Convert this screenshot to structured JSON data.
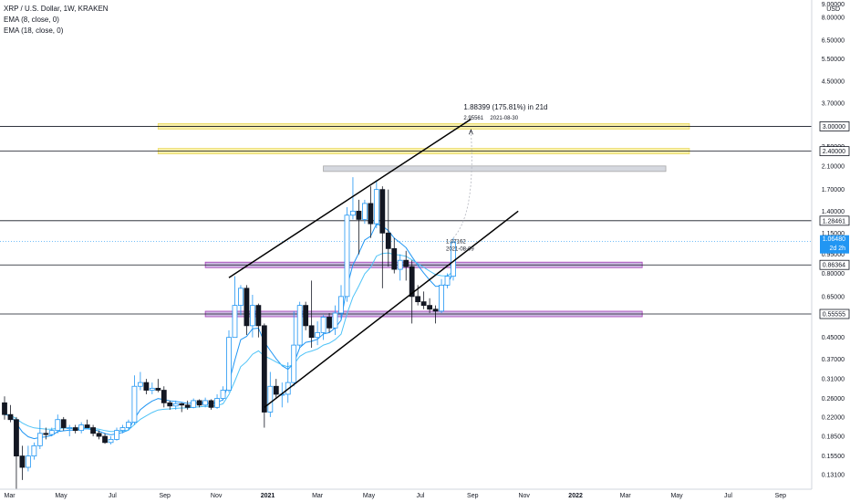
{
  "header": {
    "symbol_line": "XRP / U.S. Dollar, 1W, KRAKEN",
    "ema1": "EMA (8, close, 0)",
    "ema2": "EMA (18, close, 0)"
  },
  "chart_data": {
    "type": "candlestick",
    "scale": "log",
    "currency": "USD",
    "price_ticks": [
      "9.00000",
      "8.00000",
      "6.50000",
      "5.50000",
      "4.50000",
      "3.70000",
      "3.00000",
      "2.50000",
      "2.10000",
      "1.70000",
      "1.40000",
      "1.15000",
      "0.95000",
      "0.80000",
      "0.65000",
      "0.55000",
      "0.45000",
      "0.37000",
      "0.31000",
      "0.26000",
      "0.22000",
      "0.18500",
      "0.15500",
      "0.13100"
    ],
    "time_ticks": [
      "Mar",
      "May",
      "Jul",
      "Sep",
      "Nov",
      "2021",
      "Mar",
      "May",
      "Jul",
      "Sep",
      "Nov",
      "2022",
      "Mar",
      "May",
      "Jul",
      "Sep"
    ],
    "current_price": {
      "label": "1.06480",
      "countdown": "2d 2h",
      "value": 1.0648
    },
    "horizontal_levels": [
      {
        "label": "3.00000",
        "value": 3.0
      },
      {
        "label": "2.40000",
        "value": 2.4
      },
      {
        "label": "1.28461",
        "value": 1.28461
      },
      {
        "label": "0.86364",
        "value": 0.86364
      },
      {
        "label": "0.55555",
        "value": 0.55555
      }
    ],
    "zones": [
      {
        "color": "#e8d44d",
        "fill": "#f7eea0",
        "value": 3.0,
        "from": "2020-08-24",
        "to": "2022-05-16"
      },
      {
        "color": "#e8d44d",
        "fill": "#f7eea0",
        "value": 2.4,
        "from": "2020-08-24",
        "to": "2022-05-16"
      },
      {
        "color": "#9e9e9e",
        "fill": "#d1d4dc",
        "value": 2.05,
        "from": "2021-03-08",
        "to": "2022-04-18"
      },
      {
        "color": "#9c27b0",
        "fill": "#c9b3e0",
        "value": 0.86364,
        "from": "2020-10-19",
        "to": "2022-03-21"
      },
      {
        "color": "#9c27b0",
        "fill": "#c9b3e0",
        "value": 0.55555,
        "from": "2020-10-19",
        "to": "2022-03-21"
      }
    ],
    "projection": {
      "label": "1.88399 (175.81%) in 21d",
      "sub_label_price": "2.95561",
      "sub_label_date": "2021-08-30",
      "origin_label_price": "1.07162",
      "origin_label_date": "2021-08-09"
    },
    "channel": {
      "upper": [
        {
          "date": "2020-11-16",
          "price": 0.77
        },
        {
          "date": "2021-08-30",
          "price": 3.2
        }
      ],
      "lower": [
        {
          "date": "2020-12-28",
          "price": 0.24
        },
        {
          "date": "2021-10-25",
          "price": 1.4
        }
      ]
    },
    "candles": [
      {
        "d": "2020-02-24",
        "o": 0.25,
        "h": 0.265,
        "l": 0.215,
        "c": 0.225
      },
      {
        "d": "2020-03-02",
        "o": 0.225,
        "h": 0.245,
        "l": 0.21,
        "c": 0.215
      },
      {
        "d": "2020-03-09",
        "o": 0.215,
        "h": 0.22,
        "l": 0.115,
        "c": 0.155
      },
      {
        "d": "2020-03-16",
        "o": 0.155,
        "h": 0.17,
        "l": 0.125,
        "c": 0.14
      },
      {
        "d": "2020-03-23",
        "o": 0.14,
        "h": 0.17,
        "l": 0.135,
        "c": 0.155
      },
      {
        "d": "2020-03-30",
        "o": 0.155,
        "h": 0.175,
        "l": 0.15,
        "c": 0.17
      },
      {
        "d": "2020-04-06",
        "o": 0.17,
        "h": 0.215,
        "l": 0.165,
        "c": 0.19
      },
      {
        "d": "2020-04-13",
        "o": 0.19,
        "h": 0.2,
        "l": 0.18,
        "c": 0.188
      },
      {
        "d": "2020-04-20",
        "o": 0.188,
        "h": 0.2,
        "l": 0.185,
        "c": 0.195
      },
      {
        "d": "2020-04-27",
        "o": 0.195,
        "h": 0.225,
        "l": 0.19,
        "c": 0.215
      },
      {
        "d": "2020-05-04",
        "o": 0.215,
        "h": 0.22,
        "l": 0.195,
        "c": 0.2
      },
      {
        "d": "2020-05-11",
        "o": 0.2,
        "h": 0.205,
        "l": 0.185,
        "c": 0.2
      },
      {
        "d": "2020-05-18",
        "o": 0.2,
        "h": 0.205,
        "l": 0.19,
        "c": 0.195
      },
      {
        "d": "2020-05-25",
        "o": 0.195,
        "h": 0.21,
        "l": 0.19,
        "c": 0.205
      },
      {
        "d": "2020-06-01",
        "o": 0.205,
        "h": 0.215,
        "l": 0.2,
        "c": 0.2
      },
      {
        "d": "2020-06-08",
        "o": 0.2,
        "h": 0.205,
        "l": 0.185,
        "c": 0.19
      },
      {
        "d": "2020-06-15",
        "o": 0.19,
        "h": 0.195,
        "l": 0.18,
        "c": 0.185
      },
      {
        "d": "2020-06-22",
        "o": 0.185,
        "h": 0.19,
        "l": 0.173,
        "c": 0.175
      },
      {
        "d": "2020-06-29",
        "o": 0.175,
        "h": 0.185,
        "l": 0.172,
        "c": 0.18
      },
      {
        "d": "2020-07-06",
        "o": 0.18,
        "h": 0.2,
        "l": 0.178,
        "c": 0.195
      },
      {
        "d": "2020-07-13",
        "o": 0.195,
        "h": 0.205,
        "l": 0.19,
        "c": 0.2
      },
      {
        "d": "2020-07-20",
        "o": 0.2,
        "h": 0.215,
        "l": 0.195,
        "c": 0.21
      },
      {
        "d": "2020-07-27",
        "o": 0.21,
        "h": 0.32,
        "l": 0.205,
        "c": 0.29
      },
      {
        "d": "2020-08-03",
        "o": 0.29,
        "h": 0.33,
        "l": 0.28,
        "c": 0.3
      },
      {
        "d": "2020-08-10",
        "o": 0.3,
        "h": 0.31,
        "l": 0.27,
        "c": 0.28
      },
      {
        "d": "2020-08-17",
        "o": 0.28,
        "h": 0.3,
        "l": 0.27,
        "c": 0.285
      },
      {
        "d": "2020-08-24",
        "o": 0.285,
        "h": 0.31,
        "l": 0.275,
        "c": 0.28
      },
      {
        "d": "2020-08-31",
        "o": 0.28,
        "h": 0.29,
        "l": 0.24,
        "c": 0.25
      },
      {
        "d": "2020-09-07",
        "o": 0.25,
        "h": 0.255,
        "l": 0.235,
        "c": 0.243
      },
      {
        "d": "2020-09-14",
        "o": 0.243,
        "h": 0.255,
        "l": 0.235,
        "c": 0.248
      },
      {
        "d": "2020-09-21",
        "o": 0.248,
        "h": 0.25,
        "l": 0.23,
        "c": 0.245
      },
      {
        "d": "2020-09-28",
        "o": 0.245,
        "h": 0.255,
        "l": 0.235,
        "c": 0.24
      },
      {
        "d": "2020-10-05",
        "o": 0.24,
        "h": 0.26,
        "l": 0.238,
        "c": 0.255
      },
      {
        "d": "2020-10-12",
        "o": 0.255,
        "h": 0.258,
        "l": 0.24,
        "c": 0.245
      },
      {
        "d": "2020-10-19",
        "o": 0.245,
        "h": 0.262,
        "l": 0.24,
        "c": 0.255
      },
      {
        "d": "2020-10-26",
        "o": 0.255,
        "h": 0.258,
        "l": 0.235,
        "c": 0.24
      },
      {
        "d": "2020-11-02",
        "o": 0.24,
        "h": 0.27,
        "l": 0.237,
        "c": 0.26
      },
      {
        "d": "2020-11-09",
        "o": 0.26,
        "h": 0.29,
        "l": 0.255,
        "c": 0.28
      },
      {
        "d": "2020-11-16",
        "o": 0.28,
        "h": 0.48,
        "l": 0.275,
        "c": 0.45
      },
      {
        "d": "2020-11-23",
        "o": 0.45,
        "h": 0.78,
        "l": 0.45,
        "c": 0.6
      },
      {
        "d": "2020-11-30",
        "o": 0.6,
        "h": 0.72,
        "l": 0.55,
        "c": 0.7
      },
      {
        "d": "2020-12-07",
        "o": 0.7,
        "h": 0.72,
        "l": 0.46,
        "c": 0.5
      },
      {
        "d": "2020-12-14",
        "o": 0.5,
        "h": 0.66,
        "l": 0.45,
        "c": 0.6
      },
      {
        "d": "2020-12-21",
        "o": 0.6,
        "h": 0.61,
        "l": 0.45,
        "c": 0.5
      },
      {
        "d": "2020-12-28",
        "o": 0.5,
        "h": 0.51,
        "l": 0.2,
        "c": 0.23
      },
      {
        "d": "2021-01-04",
        "o": 0.23,
        "h": 0.33,
        "l": 0.22,
        "c": 0.29
      },
      {
        "d": "2021-01-11",
        "o": 0.29,
        "h": 0.31,
        "l": 0.26,
        "c": 0.27
      },
      {
        "d": "2021-01-18",
        "o": 0.27,
        "h": 0.3,
        "l": 0.24,
        "c": 0.27
      },
      {
        "d": "2021-01-25",
        "o": 0.27,
        "h": 0.36,
        "l": 0.25,
        "c": 0.3
      },
      {
        "d": "2021-02-01",
        "o": 0.3,
        "h": 0.57,
        "l": 0.29,
        "c": 0.42
      },
      {
        "d": "2021-02-08",
        "o": 0.42,
        "h": 0.62,
        "l": 0.41,
        "c": 0.6
      },
      {
        "d": "2021-02-15",
        "o": 0.6,
        "h": 0.62,
        "l": 0.48,
        "c": 0.5
      },
      {
        "d": "2021-02-22",
        "o": 0.5,
        "h": 0.75,
        "l": 0.41,
        "c": 0.45
      },
      {
        "d": "2021-03-01",
        "o": 0.45,
        "h": 0.52,
        "l": 0.42,
        "c": 0.47
      },
      {
        "d": "2021-03-08",
        "o": 0.47,
        "h": 0.55,
        "l": 0.44,
        "c": 0.54
      },
      {
        "d": "2021-03-15",
        "o": 0.54,
        "h": 0.56,
        "l": 0.47,
        "c": 0.49
      },
      {
        "d": "2021-03-22",
        "o": 0.49,
        "h": 0.6,
        "l": 0.46,
        "c": 0.56
      },
      {
        "d": "2021-03-29",
        "o": 0.56,
        "h": 0.72,
        "l": 0.53,
        "c": 0.65
      },
      {
        "d": "2021-04-05",
        "o": 0.65,
        "h": 1.45,
        "l": 0.62,
        "c": 1.35
      },
      {
        "d": "2021-04-12",
        "o": 1.35,
        "h": 1.9,
        "l": 1.3,
        "c": 1.4
      },
      {
        "d": "2021-04-19",
        "o": 1.4,
        "h": 1.55,
        "l": 0.95,
        "c": 1.3
      },
      {
        "d": "2021-04-26",
        "o": 1.3,
        "h": 1.55,
        "l": 1.25,
        "c": 1.5
      },
      {
        "d": "2021-05-03",
        "o": 1.5,
        "h": 1.75,
        "l": 1.1,
        "c": 1.25
      },
      {
        "d": "2021-05-10",
        "o": 1.25,
        "h": 1.85,
        "l": 1.2,
        "c": 1.7
      },
      {
        "d": "2021-05-17",
        "o": 1.7,
        "h": 1.75,
        "l": 0.7,
        "c": 1.15
      },
      {
        "d": "2021-05-24",
        "o": 1.15,
        "h": 1.7,
        "l": 0.85,
        "c": 1.0
      },
      {
        "d": "2021-05-31",
        "o": 1.0,
        "h": 1.1,
        "l": 0.8,
        "c": 0.83
      },
      {
        "d": "2021-06-07",
        "o": 0.83,
        "h": 0.95,
        "l": 0.75,
        "c": 0.9
      },
      {
        "d": "2021-06-14",
        "o": 0.9,
        "h": 0.98,
        "l": 0.75,
        "c": 0.85
      },
      {
        "d": "2021-06-21",
        "o": 0.85,
        "h": 0.9,
        "l": 0.51,
        "c": 0.65
      },
      {
        "d": "2021-06-28",
        "o": 0.65,
        "h": 0.72,
        "l": 0.6,
        "c": 0.62
      },
      {
        "d": "2021-07-05",
        "o": 0.62,
        "h": 0.68,
        "l": 0.58,
        "c": 0.6
      },
      {
        "d": "2021-07-12",
        "o": 0.6,
        "h": 0.64,
        "l": 0.56,
        "c": 0.58
      },
      {
        "d": "2021-07-19",
        "o": 0.58,
        "h": 0.6,
        "l": 0.51,
        "c": 0.57
      },
      {
        "d": "2021-07-26",
        "o": 0.57,
        "h": 0.76,
        "l": 0.56,
        "c": 0.72
      },
      {
        "d": "2021-08-02",
        "o": 0.72,
        "h": 0.8,
        "l": 0.7,
        "c": 0.78
      },
      {
        "d": "2021-08-09",
        "o": 0.78,
        "h": 1.1,
        "l": 0.75,
        "c": 1.06
      }
    ]
  }
}
